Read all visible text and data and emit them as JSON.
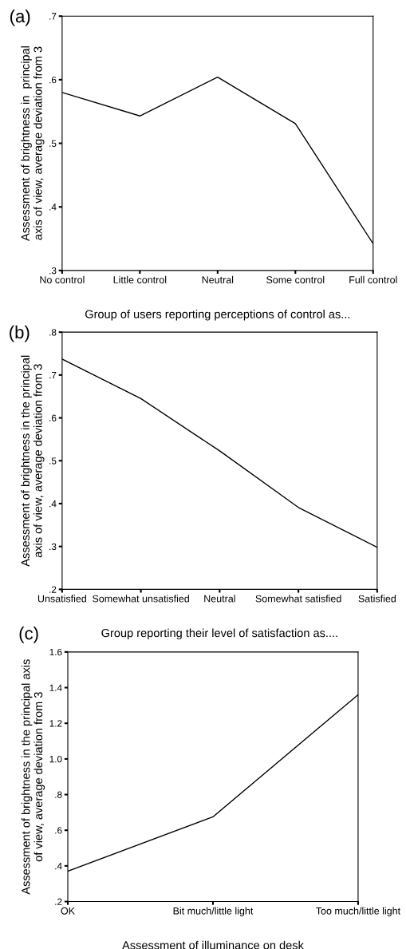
{
  "chart_data": [
    {
      "type": "line",
      "title": "(a)",
      "xlabel": "Group of users reporting perceptions of control as...",
      "ylabel": "Assessment of brightness in  principal\naxis of view, average deviation from 3",
      "categories": [
        "No control",
        "Little control",
        "Neutral",
        "Some control",
        "Full control"
      ],
      "series": [
        {
          "color": "#000000",
          "values": [
            0.58,
            0.543,
            0.604,
            0.531,
            0.342
          ]
        }
      ],
      "ylim": [
        0.3,
        0.7
      ],
      "yticks": [
        {
          "value": 0.3,
          "label": ".3"
        },
        {
          "value": 0.4,
          "label": ".4"
        },
        {
          "value": 0.5,
          "label": ".5"
        },
        {
          "value": 0.6,
          "label": ".6"
        },
        {
          "value": 0.7,
          "label": ".7"
        }
      ],
      "grid": false,
      "marker": "none",
      "line_style": "solid"
    },
    {
      "type": "line",
      "title": "(b)",
      "xlabel": "Group reporting their level of satisfaction as....",
      "ylabel": "Assessment of brightness in the principal\naxis of view, average deviation from 3",
      "categories": [
        "Unsatisfied",
        "Somewhat unsatisfied",
        "Neutral",
        "Somewhat satisfied",
        "Satisfied"
      ],
      "series": [
        {
          "color": "#000000",
          "values": [
            0.737,
            0.645,
            0.523,
            0.391,
            0.298
          ]
        }
      ],
      "ylim": [
        0.2,
        0.8
      ],
      "yticks": [
        {
          "value": 0.2,
          "label": ".2"
        },
        {
          "value": 0.3,
          "label": ".3"
        },
        {
          "value": 0.4,
          "label": ".4"
        },
        {
          "value": 0.5,
          "label": ".5"
        },
        {
          "value": 0.6,
          "label": ".6"
        },
        {
          "value": 0.7,
          "label": ".7"
        },
        {
          "value": 0.8,
          "label": ".8"
        }
      ],
      "grid": false,
      "marker": "none",
      "line_style": "solid"
    },
    {
      "type": "line",
      "title": "(c)",
      "xlabel": "Assessment of illuminance on desk",
      "ylabel": "Assessment of brightness in the principal axis\nof view, average deviation from 3",
      "categories": [
        "OK",
        "Bit much/little light",
        "Too much/little light"
      ],
      "series": [
        {
          "color": "#000000",
          "values": [
            0.37,
            0.675,
            1.36
          ]
        }
      ],
      "ylim": [
        0.2,
        1.6
      ],
      "yticks": [
        {
          "value": 0.2,
          "label": ".2"
        },
        {
          "value": 0.4,
          "label": ".4"
        },
        {
          "value": 0.6,
          "label": ".6"
        },
        {
          "value": 0.8,
          "label": ".8"
        },
        {
          "value": 1.0,
          "label": "1.0"
        },
        {
          "value": 1.2,
          "label": "1.2"
        },
        {
          "value": 1.4,
          "label": "1.4"
        },
        {
          "value": 1.6,
          "label": "1.6"
        }
      ],
      "grid": false,
      "marker": "none",
      "line_style": "solid"
    }
  ]
}
